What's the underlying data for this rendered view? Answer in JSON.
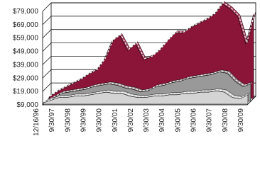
{
  "chart_data": {
    "type": "area3d",
    "categories": [
      "12/16/96",
      null,
      "9/30/97",
      null,
      "9/30/98",
      null,
      "9/30/99",
      null,
      "9/30/00",
      null,
      "9/30/01",
      null,
      "9/30/02",
      null,
      "9/30/03",
      null,
      "9/30/04",
      null,
      "9/30/05",
      null,
      "9/30/06",
      null,
      "9/30/07",
      null,
      "9/30/08",
      null,
      "9/30/09"
    ],
    "series": [
      {
        "color": "#8b1538",
        "values": [
          10000,
          14000,
          17000,
          20000,
          23000,
          27000,
          30000,
          38000,
          52000,
          56000,
          45000,
          50000,
          38000,
          40000,
          45000,
          52000,
          58000,
          58000,
          62000,
          65000,
          68000,
          72000,
          80000,
          76000,
          70000,
          50000,
          72000
        ]
      },
      {
        "color": "#999999",
        "values": [
          9000,
          12000,
          15000,
          16000,
          17000,
          18000,
          20000,
          21000,
          22000,
          21000,
          19000,
          18000,
          16000,
          17000,
          20000,
          21000,
          23000,
          24000,
          26000,
          27000,
          28000,
          29000,
          31000,
          30000,
          24000,
          20000,
          22000
        ]
      },
      {
        "color": "#d4d4d4",
        "values": [
          10000,
          12000,
          14000,
          14000,
          15000,
          15000,
          16000,
          17000,
          18000,
          17000,
          17000,
          15000,
          14000,
          14000,
          15000,
          15000,
          16000,
          16000,
          17000,
          17000,
          18000,
          18000,
          19000,
          18000,
          14000,
          13000,
          16000
        ]
      }
    ],
    "ylim": [
      9000,
      79000
    ],
    "yticks": [
      {
        "value": 9000,
        "label": "$9,000"
      },
      {
        "value": 19000,
        "label": "$19,000"
      },
      {
        "value": 29000,
        "label": "$29,000"
      },
      {
        "value": 39000,
        "label": "$39,000"
      },
      {
        "value": 49000,
        "label": "$49,000"
      },
      {
        "value": 59000,
        "label": "$59,000"
      },
      {
        "value": 69000,
        "label": "$69,000"
      },
      {
        "value": 79000,
        "label": "$79,000"
      }
    ],
    "grid": true
  }
}
